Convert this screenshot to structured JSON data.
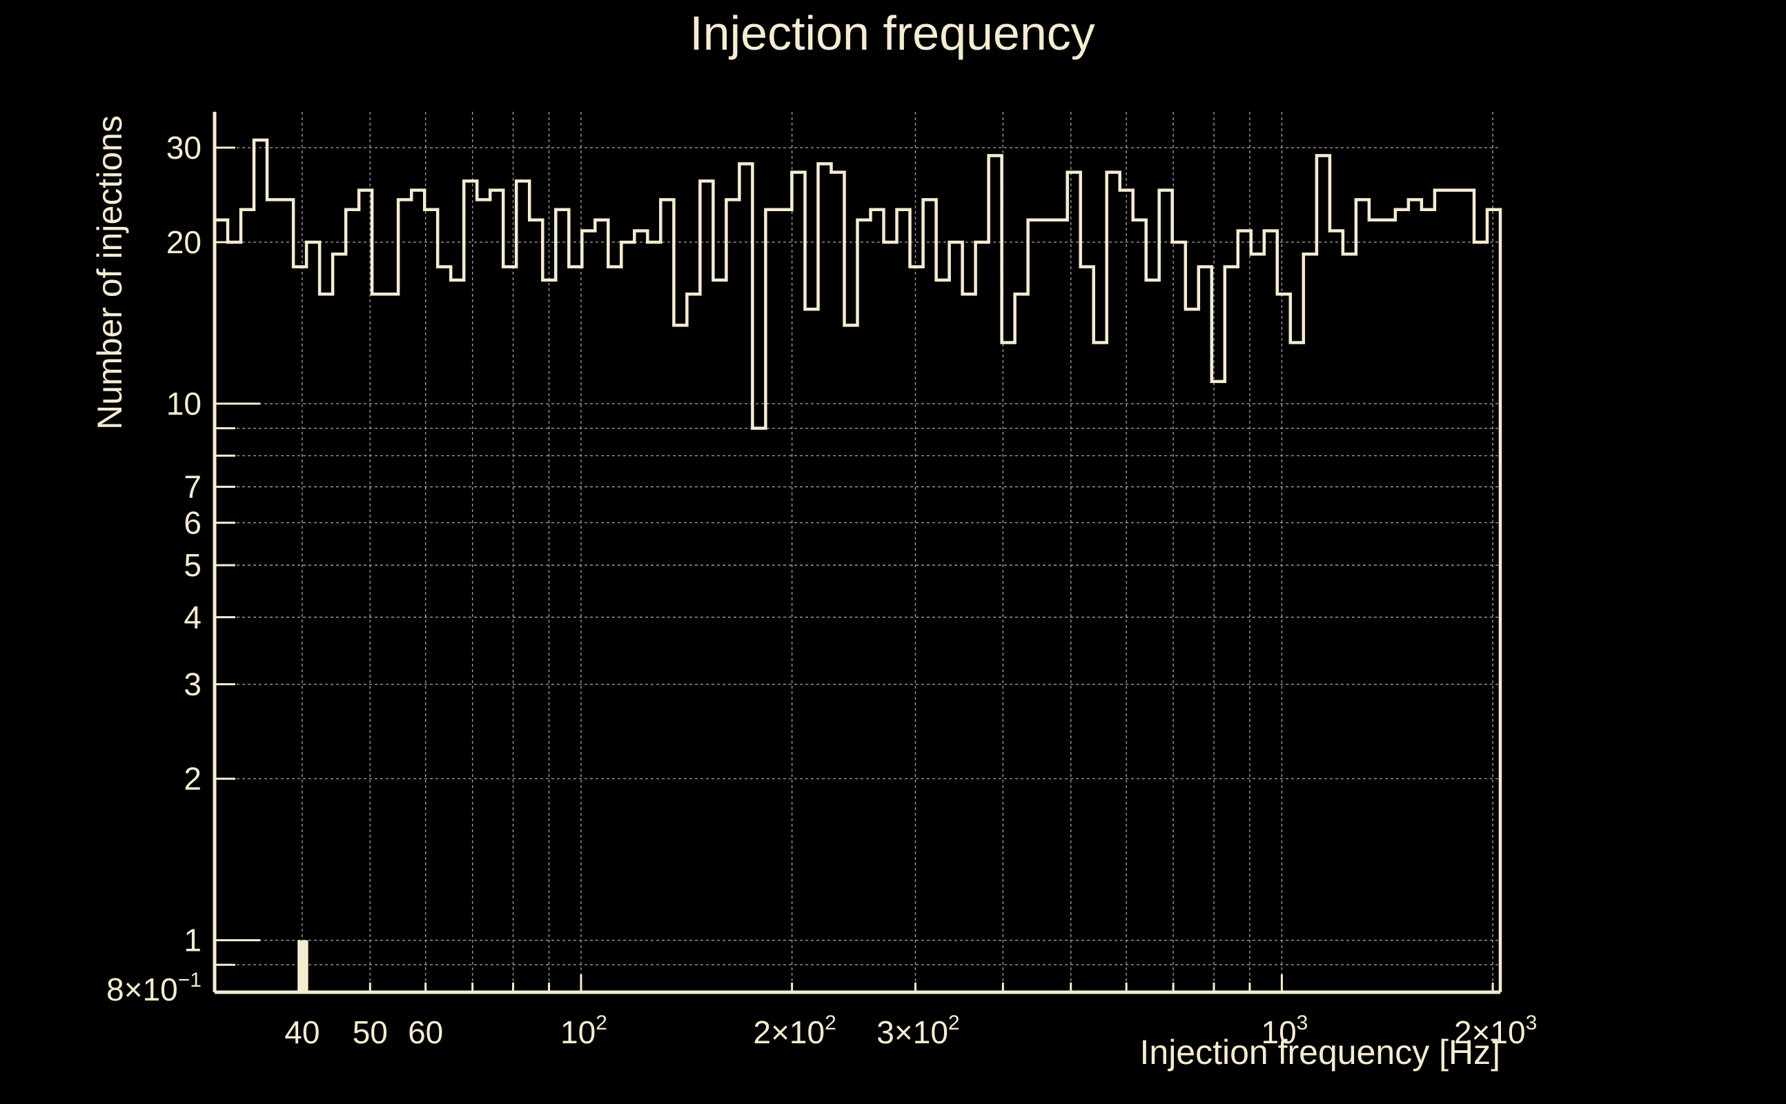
{
  "chart_data": {
    "type": "histogram",
    "title": "Injection frequency",
    "xlabel": "Injection frequency [Hz]",
    "ylabel": "Number of injections",
    "xscale": "log",
    "yscale": "log",
    "xlim": [
      30,
      2050
    ],
    "ylim": [
      0.8,
      35
    ],
    "grid": true,
    "colors": {
      "background": "#000000",
      "foreground": "#f5ecd2",
      "grid": "#9a9a9a"
    },
    "xticks": [
      {
        "value": 40,
        "label": "40"
      },
      {
        "value": 50,
        "label": "50"
      },
      {
        "value": 60,
        "label": "60"
      },
      {
        "value": 100,
        "mant": "",
        "base": "10",
        "exp": "2"
      },
      {
        "value": 200,
        "mant": "2×",
        "base": "10",
        "exp": "2"
      },
      {
        "value": 300,
        "mant": "3×",
        "base": "10",
        "exp": "2"
      },
      {
        "value": 1000,
        "mant": "",
        "base": "10",
        "exp": "3"
      },
      {
        "value": 2000,
        "mant": "2×",
        "base": "10",
        "exp": "3"
      }
    ],
    "yticks": [
      {
        "value": 0.8,
        "mant": "8×",
        "base": "10",
        "exp": "−1"
      },
      {
        "value": 1,
        "label": "1"
      },
      {
        "value": 2,
        "label": "2"
      },
      {
        "value": 3,
        "label": "3"
      },
      {
        "value": 4,
        "label": "4"
      },
      {
        "value": 5,
        "label": "5"
      },
      {
        "value": 6,
        "label": "6"
      },
      {
        "value": 7,
        "label": "7"
      },
      {
        "value": 10,
        "label": "10"
      },
      {
        "value": 20,
        "label": "20"
      },
      {
        "value": 30,
        "label": "30"
      }
    ],
    "bins": {
      "x_start": 30,
      "x_end": 2050,
      "counts": [
        22,
        20,
        23,
        31,
        24,
        24,
        18,
        20,
        16,
        19,
        23,
        25,
        16,
        16,
        24,
        25,
        23,
        18,
        17,
        26,
        24,
        25,
        18,
        26,
        22,
        17,
        23,
        18,
        21,
        22,
        18,
        20,
        21,
        20,
        24,
        14,
        16,
        26,
        17,
        24,
        28,
        9,
        23,
        23,
        27,
        15,
        28,
        27,
        14,
        22,
        23,
        20,
        23,
        18,
        24,
        17,
        20,
        16,
        20,
        29,
        13,
        16,
        22,
        22,
        22,
        27,
        18,
        13,
        27,
        25,
        22,
        17,
        25,
        20,
        15,
        18,
        11,
        18,
        21,
        19,
        21,
        16,
        13,
        19,
        29,
        21,
        19,
        24,
        22,
        22,
        23,
        24,
        23,
        25,
        25,
        25,
        20,
        23
      ],
      "underflow_bar": {
        "x_from": 39.4,
        "x_to": 40.8,
        "value": 1
      }
    }
  }
}
